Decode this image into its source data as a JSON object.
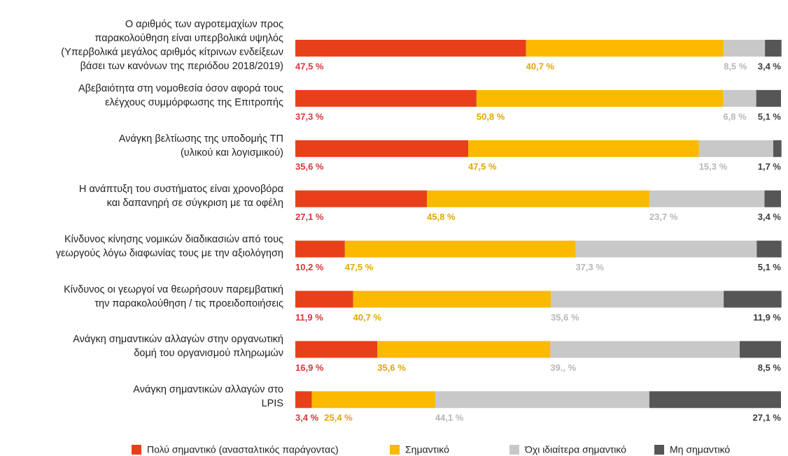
{
  "chart_data": {
    "type": "stacked-bar",
    "orientation": "horizontal",
    "categories": [
      "Ο αριθμός των αγροτεμαχίων προς\nπαρακολούθηση είναι υπερβολικά υψηλός\n(Υπερβολικά μεγάλος αριθμός κίτρινων ενδείξεων\nβάσει των κανόνων της περιόδου 2018/2019)",
      "Αβεβαιότητα στη νομοθεσία όσον αφορά τους\nελέγχους συμμόρφωσης της Επιτροπής",
      "Ανάγκη βελτίωσης της υποδομής ΤΠ\n(υλικού και λογισμικού)",
      "Η ανάπτυξη του συστήματος είναι χρονοβόρα\nκαι δαπανηρή σε σύγκριση με τα οφέλη",
      "Κίνδυνος κίνησης νομικών διαδικασιών από τους\nγεωργούς λόγω διαφωνίας τους με την αξιολόγηση",
      "Κίνδυνος οι γεωργοί να θεωρήσουν παρεμβατική\nτην παρακολούθηση / τις προειδοποιήσεις",
      "Ανάγκη σημαντικών αλλαγών στην οργανωτική\nδομή του οργανισμού πληρωμών",
      "Ανάγκη σημαντικών αλλαγών στο\nLPIS"
    ],
    "series": [
      {
        "name": "Πολύ σημαντικό (ανασταλτικός παράγοντας)",
        "color": "#e8401a",
        "values": [
          47.5,
          37.3,
          35.6,
          27.1,
          10.2,
          11.9,
          16.9,
          3.4
        ],
        "value_labels": [
          "47,5 %",
          "37,3 %",
          "35,6 %",
          "27,1 %",
          "10,2 %",
          "11,9 %",
          "16,9 %",
          "3,4 %"
        ]
      },
      {
        "name": "Σημαντικό",
        "color": "#fbb900",
        "values": [
          40.7,
          50.8,
          47.5,
          45.8,
          47.5,
          40.7,
          35.6,
          25.4
        ],
        "value_labels": [
          "40,7 %",
          "50,8 %",
          "47,5 %",
          "45,8 %",
          "47,5 %",
          "40,7 %",
          "35,6 %",
          "25,4 %"
        ]
      },
      {
        "name": "Όχι ιδιαίτερα σημαντικό",
        "color": "#c8c8c8",
        "values": [
          8.5,
          6.8,
          15.3,
          23.7,
          37.3,
          35.6,
          39.0,
          44.1
        ],
        "value_labels": [
          "8,5 %",
          "6,8 %",
          "15,3 %",
          "23,7 %",
          "37,3 %",
          "35,6 %",
          "39., %",
          "44,1 %"
        ]
      },
      {
        "name": "Μη σημαντικό",
        "color": "#565656",
        "values": [
          3.4,
          5.1,
          1.7,
          3.4,
          5.1,
          11.9,
          8.5,
          27.1
        ],
        "value_labels": [
          "3,4 %",
          "5,1 %",
          "1,7 %",
          "3,4 %",
          "5,1 %",
          "11,9 %",
          "8,5 %",
          "27,1 %"
        ]
      }
    ],
    "xlim": [
      0,
      100
    ],
    "legend": "bottom"
  }
}
